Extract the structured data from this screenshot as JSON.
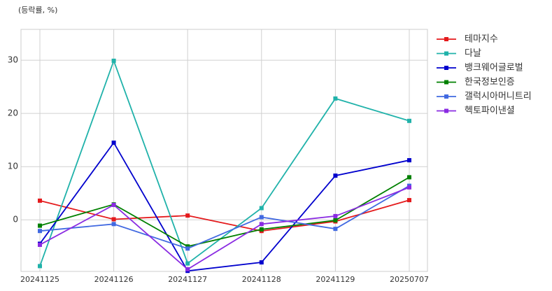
{
  "chart_data": {
    "type": "line",
    "title": "(등락률, %)",
    "categories": [
      "20241125",
      "20241126",
      "20241127",
      "20241128",
      "20241129",
      "20250707"
    ],
    "series": [
      {
        "name": "테마지수",
        "color": "#e41a1c",
        "values": [
          3.6,
          0.1,
          0.8,
          -2.1,
          -0.3,
          3.7
        ]
      },
      {
        "name": "다날",
        "color": "#20b2aa",
        "values": [
          -8.7,
          29.9,
          -8.2,
          2.2,
          22.8,
          18.6
        ]
      },
      {
        "name": "뱅크웨어글로벌",
        "color": "#0000cd",
        "values": [
          -4.5,
          14.5,
          -9.6,
          -8.0,
          8.3,
          11.2
        ]
      },
      {
        "name": "한국정보인증",
        "color": "#008000",
        "values": [
          -1.1,
          2.9,
          -5.0,
          -1.8,
          -0.1,
          8.0
        ]
      },
      {
        "name": "갤럭시아머니트리",
        "color": "#4169e1",
        "values": [
          -2.1,
          -0.8,
          -5.4,
          0.5,
          -1.7,
          6.4
        ]
      },
      {
        "name": "헥토파이낸셜",
        "color": "#8a2be2",
        "values": [
          -4.7,
          2.8,
          -9.3,
          -0.8,
          0.7,
          6.1
        ]
      }
    ],
    "ylim": [
      -9.7,
      35.8
    ],
    "yticks": [
      0,
      10,
      20,
      30
    ],
    "grid": true,
    "legend": "outside-right"
  }
}
